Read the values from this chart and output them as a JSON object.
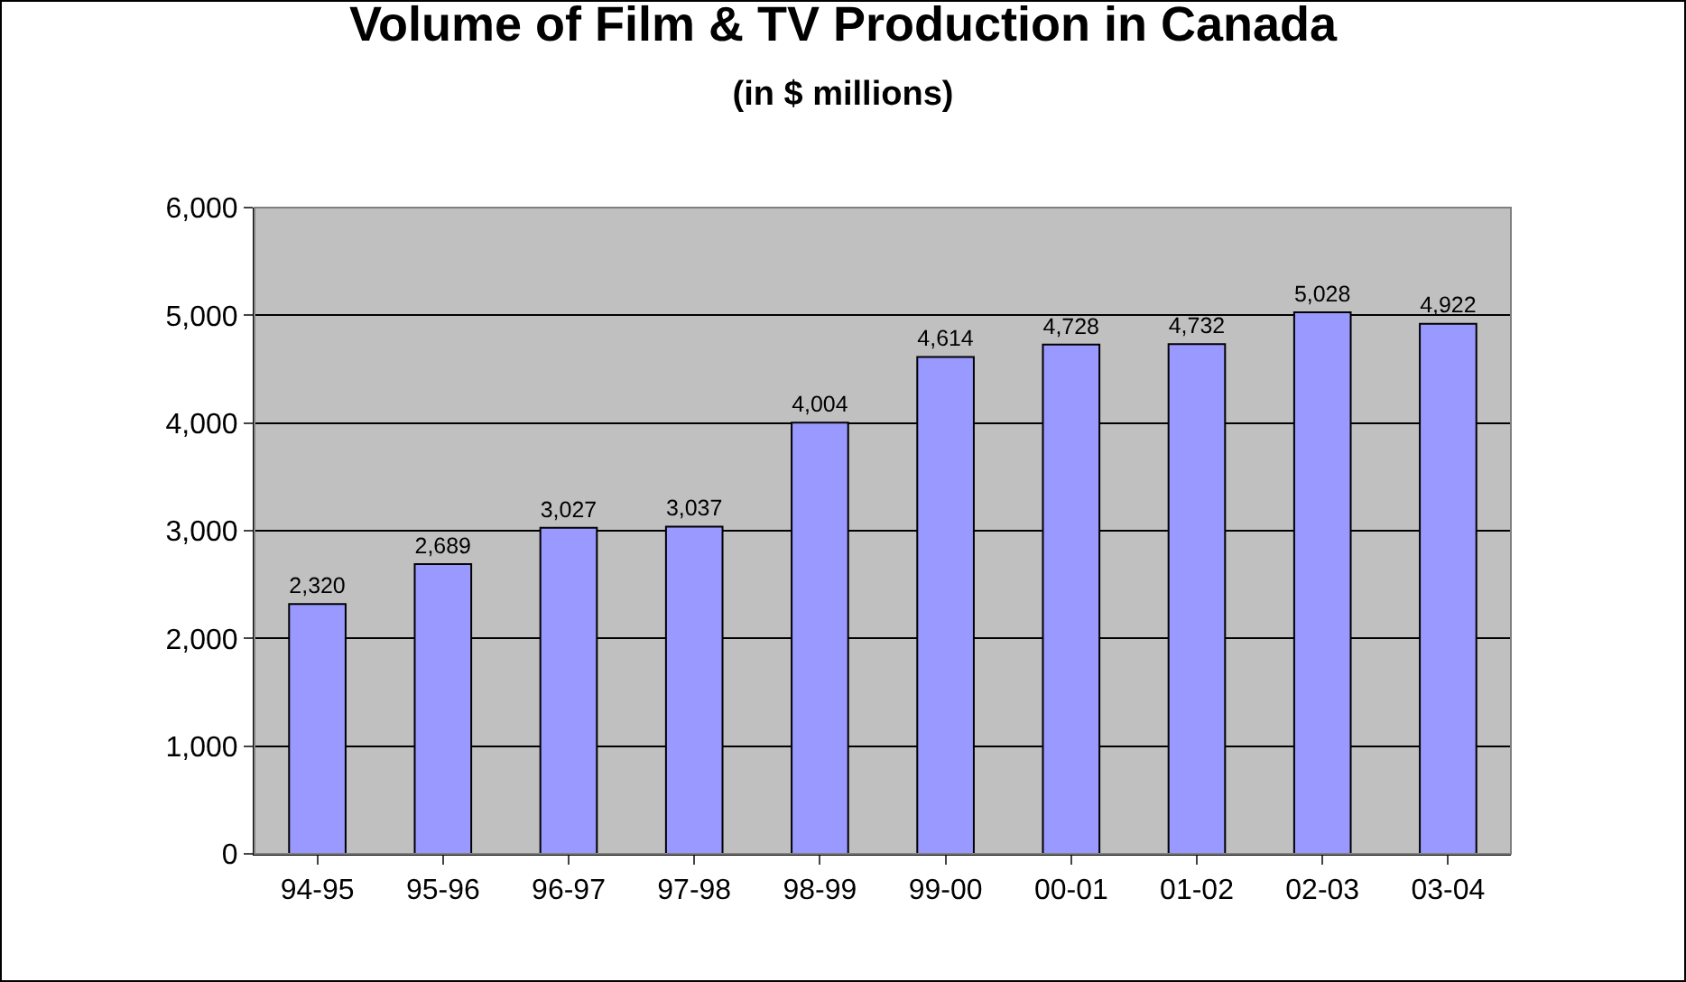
{
  "chart_data": {
    "type": "bar",
    "title": "Volume of Film & TV Production in Canada",
    "subtitle": "(in $ millions)",
    "categories": [
      "94-95",
      "95-96",
      "96-97",
      "97-98",
      "98-99",
      "99-00",
      "00-01",
      "01-02",
      "02-03",
      "03-04"
    ],
    "values": [
      2320,
      2689,
      3027,
      3037,
      4004,
      4614,
      4728,
      4732,
      5028,
      4922
    ],
    "value_labels": [
      "2,320",
      "2,689",
      "3,027",
      "3,037",
      "4,004",
      "4,614",
      "4,728",
      "4,732",
      "5,028",
      "4,922"
    ],
    "color": "#9999ff",
    "ylim": [
      0,
      6000
    ],
    "yticks": [
      0,
      {
        "value": 1000,
        "label": "1,000"
      },
      {
        "value": 2000,
        "label": "2,000"
      },
      {
        "value": 3000,
        "label": "3,000"
      },
      {
        "value": 4000,
        "label": "4,000"
      },
      {
        "value": 5000,
        "label": "5,000"
      },
      {
        "value": 6000,
        "label": "6,000"
      }
    ],
    "grid": "y",
    "legend": false
  }
}
